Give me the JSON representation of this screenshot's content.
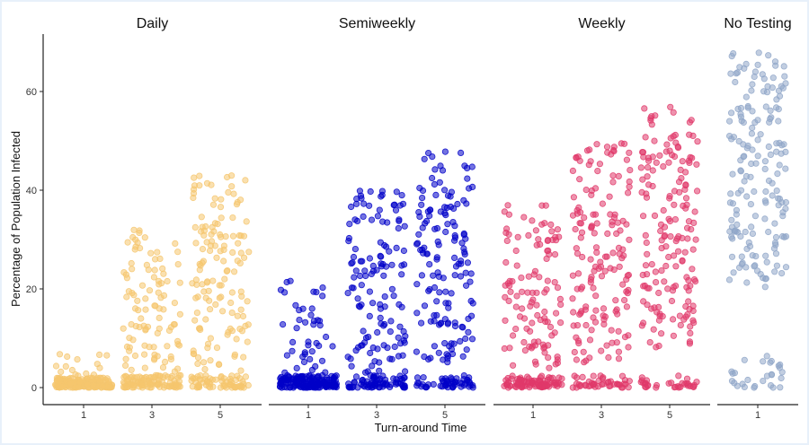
{
  "colors": {
    "Daily": "#f5c66e",
    "Semiweekly": "#0000c8",
    "Weekly": "#e0386a",
    "No Testing": "#8fa6c8"
  },
  "chart_data": {
    "type": "scatter",
    "jitter": true,
    "xlabel": "Turn-around Time",
    "ylabel": "Percentage of Population Infected",
    "ylim": [
      0,
      72
    ],
    "yticks": [
      0,
      20,
      40,
      60
    ],
    "grid": false,
    "legend": "none",
    "panels": [
      {
        "name": "Daily",
        "categories": [
          "1",
          "3",
          "5"
        ],
        "groups": [
          {
            "x": "1",
            "summary": {
              "n": 200,
              "low_cluster_max": 2,
              "low_fraction": 0.9,
              "upper_min": 2,
              "upper_max": 7
            }
          },
          {
            "x": "3",
            "summary": {
              "n": 200,
              "low_cluster_max": 2.5,
              "low_fraction": 0.55,
              "upper_min": 2,
              "upper_max": 32
            }
          },
          {
            "x": "5",
            "summary": {
              "n": 200,
              "low_cluster_max": 2.5,
              "low_fraction": 0.3,
              "upper_min": 3,
              "upper_max": 43
            }
          }
        ]
      },
      {
        "name": "Semiweekly",
        "categories": [
          "1",
          "3",
          "5"
        ],
        "groups": [
          {
            "x": "1",
            "summary": {
              "n": 200,
              "low_cluster_max": 2.5,
              "low_fraction": 0.78,
              "upper_min": 3,
              "upper_max": 22
            }
          },
          {
            "x": "3",
            "summary": {
              "n": 200,
              "low_cluster_max": 2.5,
              "low_fraction": 0.35,
              "upper_min": 3,
              "upper_max": 40
            }
          },
          {
            "x": "5",
            "summary": {
              "n": 200,
              "low_cluster_max": 2.5,
              "low_fraction": 0.25,
              "upper_min": 5,
              "upper_max": 48
            }
          }
        ]
      },
      {
        "name": "Weekly",
        "categories": [
          "1",
          "3",
          "5"
        ],
        "groups": [
          {
            "x": "1",
            "summary": {
              "n": 200,
              "low_cluster_max": 2.5,
              "low_fraction": 0.45,
              "upper_min": 3,
              "upper_max": 37
            }
          },
          {
            "x": "3",
            "summary": {
              "n": 200,
              "low_cluster_max": 2.5,
              "low_fraction": 0.25,
              "upper_min": 5,
              "upper_max": 50
            }
          },
          {
            "x": "5",
            "summary": {
              "n": 200,
              "low_cluster_max": 2.5,
              "low_fraction": 0.2,
              "upper_min": 8,
              "upper_max": 57
            }
          }
        ]
      },
      {
        "name": "No Testing",
        "categories": [
          "1"
        ],
        "groups": [
          {
            "x": "1",
            "summary": {
              "n": 200,
              "low_cluster_max": 7,
              "low_fraction": 0.15,
              "upper_min": 20,
              "upper_max": 68
            }
          }
        ]
      }
    ]
  }
}
